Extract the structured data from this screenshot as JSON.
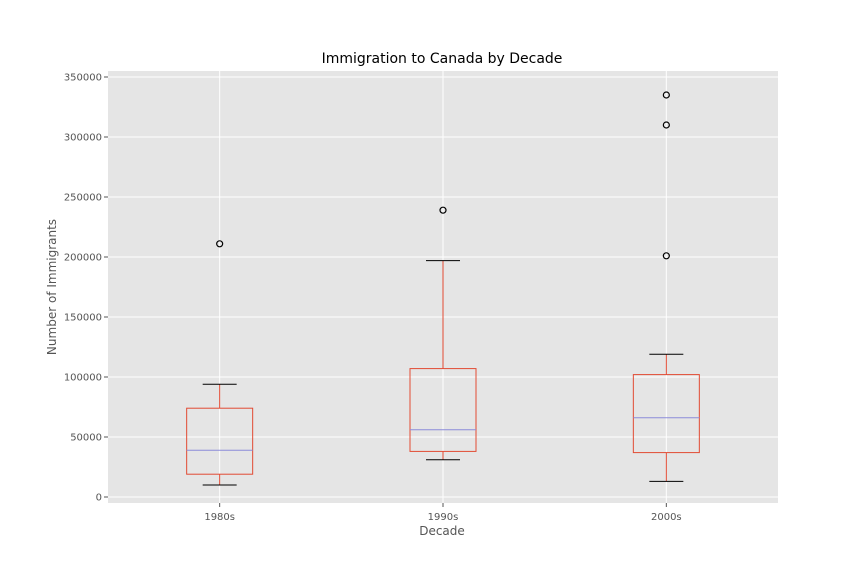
{
  "chart_data": {
    "type": "box",
    "title": "Immigration to Canada by Decade",
    "xlabel": "Decade",
    "ylabel": "Number of Immigrants",
    "ylim": [
      -5000,
      355000
    ],
    "yticks": [
      0,
      50000,
      100000,
      150000,
      200000,
      250000,
      300000,
      350000
    ],
    "ytick_labels": [
      "0",
      "50000",
      "100000",
      "150000",
      "200000",
      "250000",
      "300000",
      "350000"
    ],
    "grid": true,
    "categories": [
      "1980s",
      "1990s",
      "2000s"
    ],
    "boxes": [
      {
        "category": "1980s",
        "whisker_low": 10000,
        "q1": 19000,
        "median": 39000,
        "q3": 74000,
        "whisker_high": 94000,
        "outliers": [
          211000
        ]
      },
      {
        "category": "1990s",
        "whisker_low": 31000,
        "q1": 38000,
        "median": 56000,
        "q3": 107000,
        "whisker_high": 197000,
        "outliers": [
          239000
        ]
      },
      {
        "category": "2000s",
        "whisker_low": 13000,
        "q1": 37000,
        "median": 66000,
        "q3": 102000,
        "whisker_high": 119000,
        "outliers": [
          201000,
          310000,
          335000
        ]
      }
    ],
    "colors": {
      "plot_background": "#e5e5e5",
      "grid": "#ffffff",
      "box": "#e24a33",
      "median": "#8c8cd9",
      "whisker_cap": "#000000",
      "outlier_edge": "#000000"
    }
  }
}
